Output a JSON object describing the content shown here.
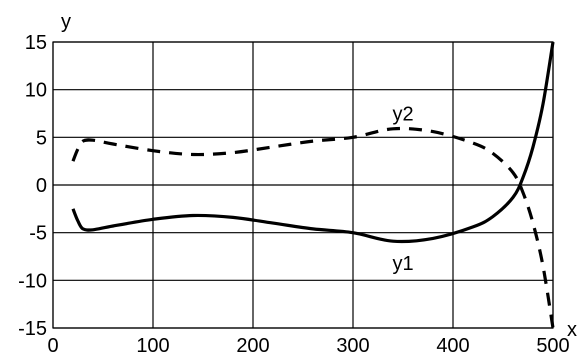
{
  "chart_data": {
    "type": "line",
    "title": "",
    "xlabel": "x",
    "ylabel": "y",
    "xlim": [
      0,
      500
    ],
    "ylim": [
      -15,
      15
    ],
    "xticks": [
      0,
      100,
      200,
      300,
      400,
      500
    ],
    "yticks": [
      15,
      10,
      5,
      0,
      -5,
      -10,
      -15
    ],
    "grid": true,
    "series_colors": {
      "y1": "#000000",
      "y2": "#000000"
    },
    "series": [
      {
        "name": "y1",
        "style": "solid",
        "x": [
          20,
          25,
          30,
          40,
          60,
          100,
          140,
          180,
          220,
          260,
          300,
          340,
          380,
          420,
          440,
          460,
          470,
          480,
          490,
          500
        ],
        "y": [
          -2.5,
          -3.8,
          -4.6,
          -4.7,
          -4.3,
          -3.6,
          -3.2,
          -3.4,
          -4.0,
          -4.6,
          -5.0,
          -5.9,
          -5.6,
          -4.4,
          -3.3,
          -1.3,
          0.8,
          4.0,
          8.5,
          15.0
        ]
      },
      {
        "name": "y2",
        "style": "dashed",
        "x": [
          20,
          25,
          30,
          40,
          60,
          100,
          140,
          180,
          220,
          260,
          300,
          340,
          380,
          420,
          440,
          460,
          470,
          480,
          490,
          500
        ],
        "y": [
          2.5,
          3.8,
          4.6,
          4.7,
          4.3,
          3.6,
          3.2,
          3.4,
          4.0,
          4.6,
          5.0,
          5.9,
          5.6,
          4.4,
          3.3,
          1.3,
          -0.8,
          -4.0,
          -8.5,
          -15.0
        ]
      }
    ],
    "annotations": [
      {
        "text": "y2",
        "x": 350,
        "y": 7.5
      },
      {
        "text": "y1",
        "x": 350,
        "y": -8.2
      }
    ]
  }
}
